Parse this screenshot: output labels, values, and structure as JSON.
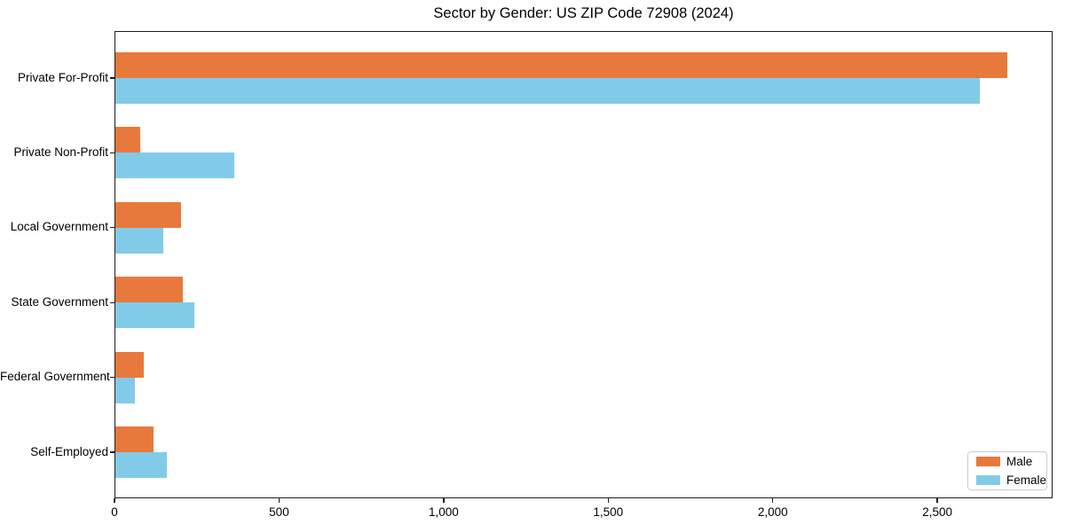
{
  "chart_data": {
    "type": "bar",
    "orientation": "horizontal",
    "title": "Sector by Gender: US ZIP Code 72908 (2024)",
    "categories": [
      "Private For-Profit",
      "Private Non-Profit",
      "Local Government",
      "State Government",
      "Federal Government",
      "Self-Employed"
    ],
    "series": [
      {
        "name": "Male",
        "color": "#E8793C",
        "values": [
          2710,
          75,
          200,
          205,
          85,
          115
        ]
      },
      {
        "name": "Female",
        "color": "#82CBE8",
        "values": [
          2625,
          360,
          145,
          240,
          60,
          155
        ]
      }
    ],
    "xlabel": "",
    "ylabel": "",
    "xlim": [
      0,
      2850
    ],
    "xticks": [
      0,
      500,
      1000,
      1500,
      2000,
      2500
    ],
    "xtick_labels": [
      "0",
      "500",
      "1,000",
      "1,500",
      "2,000",
      "2,500"
    ],
    "grid": false,
    "legend": {
      "position": "lower right"
    }
  },
  "colors": {
    "male": "#E8793C",
    "female": "#82CBE8",
    "spine": "#1c1c1c",
    "legend_border": "#cccccc",
    "background": "#ffffff",
    "text": "#000000"
  }
}
